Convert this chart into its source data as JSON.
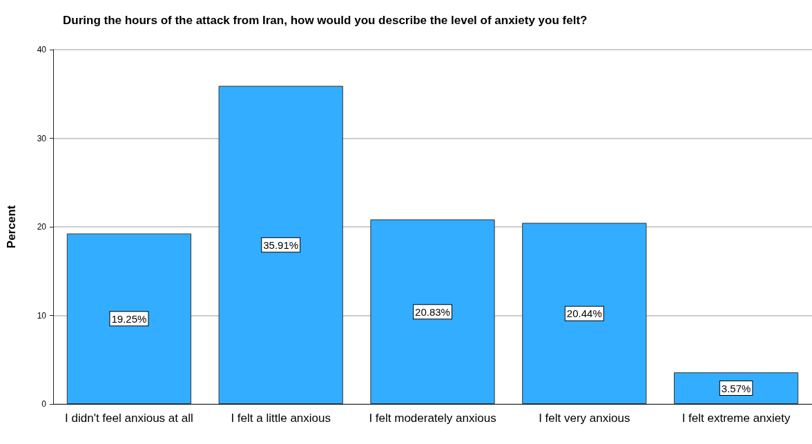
{
  "chart_data": {
    "type": "bar",
    "title": "During the hours of the attack from Iran, how would you describe the level of anxiety you felt?",
    "ylabel": "Percent",
    "categories": [
      "I didn't feel anxious at all",
      "I felt a little anxious",
      "I felt moderately anxious",
      "I felt very anxious",
      "I felt extreme anxiety"
    ],
    "values": [
      19.25,
      35.91,
      20.83,
      20.44,
      3.57
    ],
    "value_labels": [
      "19.25%",
      "35.91%",
      "20.83%",
      "20.44%",
      "3.57%"
    ],
    "color": "#33adff",
    "ylim": [
      0,
      40
    ],
    "yticks": [
      0,
      10,
      20,
      30,
      40
    ],
    "grid": "y"
  }
}
